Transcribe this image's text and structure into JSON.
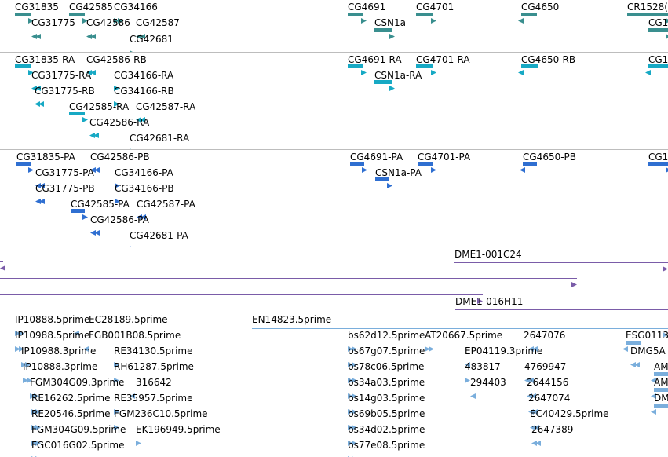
{
  "colors": {
    "gene": "#3a8f8f",
    "transcript": "#17a9c4",
    "protein": "#2f6fd1",
    "clone": "#7a5ca8",
    "est": "#7aaedc",
    "separator": "#bdbdbd"
  },
  "tracks": [
    {
      "id": "genes",
      "color": "gene",
      "features": [
        {
          "label": "CG31835",
          "strand": "+"
        },
        {
          "label": "CG42585",
          "strand": "+"
        },
        {
          "label": "CG34166",
          "strand": "+"
        },
        {
          "label": "CG31775",
          "strand": "-"
        },
        {
          "label": "CG42586",
          "strand": "-"
        },
        {
          "label": "CG42587",
          "strand": "-"
        },
        {
          "label": "CG42681",
          "strand": "+"
        },
        {
          "label": "CG4691",
          "strand": "+"
        },
        {
          "label": "CG4701",
          "strand": "+"
        },
        {
          "label": "CSN1a",
          "strand": "+"
        },
        {
          "label": "CG4650",
          "strand": "-"
        },
        {
          "label": "CR1528(",
          "strand": "+"
        },
        {
          "label": "CG1",
          "strand": "+"
        }
      ]
    },
    {
      "id": "transcripts",
      "color": "transcript",
      "features": [
        {
          "label": "CG31835-RA",
          "strand": "+"
        },
        {
          "label": "CG42586-RB",
          "strand": "-"
        },
        {
          "label": "CG31775-RA",
          "strand": "-"
        },
        {
          "label": "CG34166-RA",
          "strand": "+"
        },
        {
          "label": "CG31775-RB",
          "strand": "-"
        },
        {
          "label": "CG34166-RB",
          "strand": "+"
        },
        {
          "label": "CG42585-RA",
          "strand": "+"
        },
        {
          "label": "CG42587-RA",
          "strand": "-"
        },
        {
          "label": "CG42586-RA",
          "strand": "-"
        },
        {
          "label": "CG42681-RA",
          "strand": "+"
        },
        {
          "label": "CG4691-RA",
          "strand": "+"
        },
        {
          "label": "CG4701-RA",
          "strand": "+"
        },
        {
          "label": "CSN1a-RA",
          "strand": "+"
        },
        {
          "label": "CG4650-RB",
          "strand": "-"
        },
        {
          "label": "CG1",
          "strand": "-"
        }
      ]
    },
    {
      "id": "proteins",
      "color": "protein",
      "features": [
        {
          "label": "CG31835-PA",
          "strand": "+"
        },
        {
          "label": "CG42586-PB",
          "strand": "-"
        },
        {
          "label": "CG31775-PA",
          "strand": "-"
        },
        {
          "label": "CG34166-PA",
          "strand": "+"
        },
        {
          "label": "CG31775-PB",
          "strand": "-"
        },
        {
          "label": "CG34166-PB",
          "strand": "+"
        },
        {
          "label": "CG42585-PA",
          "strand": "+"
        },
        {
          "label": "CG42587-PA",
          "strand": "-"
        },
        {
          "label": "CG42586-PA",
          "strand": "-"
        },
        {
          "label": "CG42681-PA",
          "strand": "+"
        },
        {
          "label": "CG4691-PA",
          "strand": "+"
        },
        {
          "label": "CG4701-PA",
          "strand": "+"
        },
        {
          "label": "CSN1a-PA",
          "strand": "+"
        },
        {
          "label": "CG4650-PB",
          "strand": "-"
        },
        {
          "label": "CG1",
          "strand": "+"
        }
      ]
    },
    {
      "id": "clones",
      "color": "clone",
      "features": [
        {
          "label": "",
          "strand": "-"
        },
        {
          "label": "DME1-001C24",
          "strand": "+"
        },
        {
          "label": "",
          "strand": "+"
        },
        {
          "label": "",
          "strand": "+"
        },
        {
          "label": "DME1-016H11",
          "strand": "+"
        }
      ]
    },
    {
      "id": "ests",
      "color": "est",
      "features": [
        {
          "label": "IP10888.5prime",
          "strand": "+"
        },
        {
          "label": "EC28189.5prime",
          "strand": "-"
        },
        {
          "label": "EN14823.5prime",
          "strand": "+"
        },
        {
          "label": "IP10988.5prime",
          "strand": "+"
        },
        {
          "label": "FGB001B08.5prime",
          "strand": "-"
        },
        {
          "label": "IP10988.3prime",
          "strand": "+"
        },
        {
          "label": "RE34130.5prime",
          "strand": "+"
        },
        {
          "label": "IP10888.3prime",
          "strand": "+"
        },
        {
          "label": "RH61287.5prime",
          "strand": "+"
        },
        {
          "label": "FGM304G09.3prime",
          "strand": "+"
        },
        {
          "label": "316642",
          "strand": "-"
        },
        {
          "label": "RE16262.5prime",
          "strand": "+"
        },
        {
          "label": "RE35957.5prime",
          "strand": "+"
        },
        {
          "label": "RE20546.5prime",
          "strand": "+"
        },
        {
          "label": "FGM236C10.5prime",
          "strand": "+"
        },
        {
          "label": "FGM304G09.5prime",
          "strand": "+"
        },
        {
          "label": "EK196949.5prime",
          "strand": "+"
        },
        {
          "label": "FGC016G02.5prime",
          "strand": "+"
        },
        {
          "label": "bs62d12.5prime",
          "strand": "+"
        },
        {
          "label": "AT20667.5prime",
          "strand": "+"
        },
        {
          "label": "2647076",
          "strand": "-"
        },
        {
          "label": "bs67g07.5prime",
          "strand": "+"
        },
        {
          "label": "EP04119.3prime",
          "strand": "-"
        },
        {
          "label": "bs78c06.5prime",
          "strand": "+"
        },
        {
          "label": "483817",
          "strand": "+"
        },
        {
          "label": "4769947",
          "strand": "-"
        },
        {
          "label": "bs34a03.5prime",
          "strand": "+"
        },
        {
          "label": "294403",
          "strand": "-"
        },
        {
          "label": "2644156",
          "strand": "-"
        },
        {
          "label": "bs14g03.5prime",
          "strand": "+"
        },
        {
          "label": "2647074",
          "strand": "-"
        },
        {
          "label": "bs69b05.5prime",
          "strand": "+"
        },
        {
          "label": "EC40429.5prime",
          "strand": "-"
        },
        {
          "label": "bs34d02.5prime",
          "strand": "+"
        },
        {
          "label": "2647389",
          "strand": "-"
        },
        {
          "label": "bs77e08.5prime",
          "strand": "+"
        },
        {
          "label": "ESG0113",
          "strand": "-"
        },
        {
          "label": "DMG5A",
          "strand": "-"
        },
        {
          "label": "AM",
          "strand": "-"
        },
        {
          "label": "AM",
          "strand": "-"
        },
        {
          "label": "DM",
          "strand": "-"
        }
      ]
    }
  ]
}
